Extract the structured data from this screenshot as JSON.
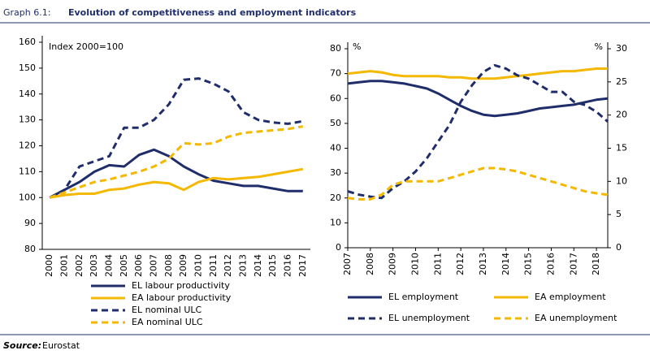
{
  "header": {
    "label": "Graph 6.1:",
    "title": "Evolution of competitiveness and employment indicators"
  },
  "source": {
    "label": "Source:",
    "text": "Eurostat"
  },
  "chart_data": [
    {
      "type": "line",
      "annotation": "Index 2000=100",
      "categories": [
        "2000",
        "2001",
        "2002",
        "2003",
        "2004",
        "2005",
        "2006",
        "2007",
        "2008",
        "2009",
        "2010",
        "2011",
        "2012",
        "2013",
        "2014",
        "2015",
        "2016",
        "2017"
      ],
      "ylim": [
        80,
        160
      ],
      "yticks": [
        80,
        90,
        100,
        110,
        120,
        130,
        140,
        150,
        160
      ],
      "legend_columns": 1,
      "series": [
        {
          "name": "EL labour productivity",
          "color": "#1f2d6b",
          "style": "solid",
          "values": [
            100,
            103,
            106,
            110,
            112.5,
            112,
            116.5,
            118.5,
            116,
            112,
            109,
            106.5,
            105.5,
            104.5,
            104.5,
            103.5,
            102.5,
            102.5
          ]
        },
        {
          "name": "EA labour productivity",
          "color": "#f5b800",
          "style": "solid",
          "values": [
            100,
            101,
            101.5,
            101.5,
            103,
            103.5,
            105,
            106,
            105.5,
            103,
            106,
            107.5,
            107,
            107.5,
            108,
            109,
            110,
            111
          ]
        },
        {
          "name": "EL nominal ULC",
          "color": "#1f2d6b",
          "style": "dashed",
          "values": [
            100,
            103,
            112,
            114,
            116,
            127,
            127,
            130,
            136,
            145.5,
            146,
            144,
            141,
            133,
            130,
            129,
            128.5,
            129.5
          ]
        },
        {
          "name": "EA nominal ULC",
          "color": "#f5b800",
          "style": "dashed",
          "values": [
            100,
            102,
            104,
            106,
            107,
            108.5,
            110,
            112,
            115,
            121,
            120.5,
            121,
            123.5,
            125,
            125.5,
            126,
            126.5,
            127.5
          ]
        }
      ]
    },
    {
      "type": "line",
      "y_label": "%",
      "y2_label": "%",
      "x": [
        2007,
        2007.5,
        2008,
        2008.5,
        2009,
        2009.5,
        2010,
        2010.5,
        2011,
        2011.5,
        2012,
        2012.5,
        2013,
        2013.5,
        2014,
        2014.5,
        2015,
        2015.5,
        2016,
        2016.5,
        2017,
        2017.5,
        2018,
        2018.5
      ],
      "xlim": [
        2007,
        2018.5
      ],
      "xticks": [
        2007,
        2008,
        2009,
        2010,
        2011,
        2012,
        2013,
        2014,
        2015,
        2016,
        2017,
        2018
      ],
      "ylim": [
        0,
        80
      ],
      "yticks": [
        0,
        10,
        20,
        30,
        40,
        50,
        60,
        70,
        80
      ],
      "y2lim": [
        0,
        30
      ],
      "y2ticks": [
        0,
        5,
        10,
        15,
        20,
        25,
        30
      ],
      "legend_columns": 2,
      "series": [
        {
          "name": "EL employment",
          "color": "#1f2d6b",
          "style": "solid",
          "values": [
            66,
            66.5,
            67,
            67,
            66.5,
            66,
            65,
            64,
            62,
            59.5,
            57,
            55,
            53.5,
            53,
            53.5,
            54,
            55,
            56,
            56.5,
            57,
            57.5,
            58.5,
            59.5,
            60
          ]
        },
        {
          "name": "EA employment",
          "color": "#f5b800",
          "style": "solid",
          "values": [
            70,
            70.5,
            71,
            70.5,
            69.5,
            69,
            69,
            69,
            69,
            68.5,
            68.5,
            68,
            68,
            68,
            68.5,
            69,
            69.5,
            70,
            70.5,
            71,
            71,
            71.5,
            72,
            72
          ]
        },
        {
          "name": "EL unemployment",
          "color": "#1f2d6b",
          "style": "dashed",
          "axis": "y2",
          "values": [
            8.5,
            8,
            7.7,
            7.5,
            9,
            10,
            11.5,
            13.5,
            16,
            18.5,
            22,
            24.5,
            26.5,
            27.5,
            27,
            26,
            25.5,
            24.5,
            23.5,
            23.5,
            22,
            21.5,
            20.5,
            19
          ]
        },
        {
          "name": "EA unemployment",
          "color": "#f5b800",
          "style": "dashed",
          "axis": "y2",
          "values": [
            7.5,
            7.3,
            7.3,
            8,
            9.5,
            10,
            10,
            10,
            10,
            10.5,
            11,
            11.5,
            12,
            12,
            11.8,
            11.5,
            11,
            10.5,
            10,
            9.5,
            9,
            8.5,
            8.2,
            8
          ]
        }
      ]
    }
  ]
}
